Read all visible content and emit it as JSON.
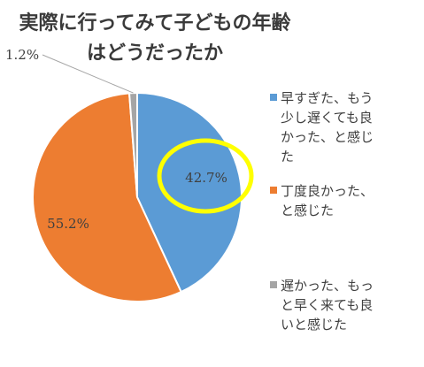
{
  "chart_data": {
    "type": "pie",
    "title_lines": [
      "実際に行ってみて子どもの年齢",
      "はどうだったか"
    ],
    "slices": [
      {
        "label": "早すぎた、もう少し遅くても良かった、と感じた",
        "value": 42.7,
        "value_label": "42.7%",
        "color": "#5B9BD5"
      },
      {
        "label": "丁度良かった、と感じた",
        "value": 55.2,
        "value_label": "55.2%",
        "color": "#ED7D31"
      },
      {
        "label": "遅かった、もっと早く来ても良いと感じた",
        "value": 1.2,
        "value_label": "1.2%",
        "color": "#A5A5A5"
      }
    ],
    "legend_lines": [
      [
        "早すぎた、もう",
        "少し遅くても良",
        "かった、と感じ",
        "た"
      ],
      [
        "丁度良かった、",
        "と感じた"
      ],
      [
        "遅かった、もっ",
        "と早く来ても良",
        "いと感じた"
      ]
    ],
    "legend_position": "right",
    "highlight": {
      "slice": 0,
      "color": "#FFFF00",
      "shape": "ellipse"
    }
  }
}
